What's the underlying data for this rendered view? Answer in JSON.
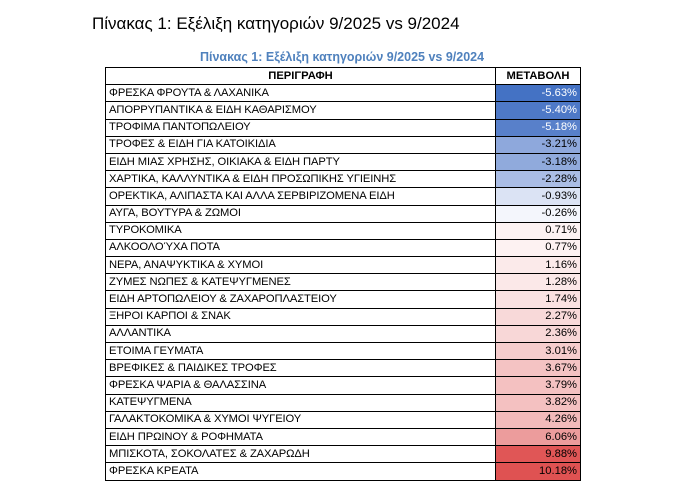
{
  "heading": "Πίνακας 1: Εξέλιξη κατηγοριών 9/2025 vs 9/2024",
  "table": {
    "caption": "Πίνακας 1: Εξέλιξη κατηγοριών 9/2025 vs 9/2024",
    "columns": [
      "ΠΕΡΙΓΡΑΦΗ",
      "ΜΕΤΑΒΟΛΗ"
    ],
    "rows": [
      {
        "description": "ΦΡΕΣΚΑ ΦΡΟΥΤΑ & ΛΑΧΑΝΙΚΑ",
        "change": "-5.63%",
        "color": "#4472c4",
        "dark": true
      },
      {
        "description": "ΑΠΟΡΡΥΠΑΝΤΙΚΑ & ΕΙΔΗ ΚΑΘΑΡΙΣΜΟΥ",
        "change": "-5.40%",
        "color": "#4e79c7",
        "dark": true
      },
      {
        "description": "ΤΡΟΦΙΜΑ ΠΑΝΤΟΠΩΛΕΙΟΥ",
        "change": "-5.18%",
        "color": "#5880ca",
        "dark": true
      },
      {
        "description": "ΤΡΟΦΕΣ & ΕΙΔΗ ΓΙΑ ΚΑΤΟΙΚΙΔΙΑ",
        "change": "-3.21%",
        "color": "#8ea8dc",
        "dark": false
      },
      {
        "description": "ΕΙΔΗ ΜΙΑΣ ΧΡΗΣΗΣ, ΟΙΚΙΑΚΑ & ΕΙΔΗ ΠΑΡΤΥ",
        "change": "-3.18%",
        "color": "#90aadc",
        "dark": false
      },
      {
        "description": "ΧΑΡΤΙΚΑ, ΚΑΛΛΥΝΤΙΚΑ & ΕΙΔΗ ΠΡΟΣΩΠΙΚΗΣ ΥΓΙΕΙΝΗΣ",
        "change": "-2.28%",
        "color": "#aabde5",
        "dark": false
      },
      {
        "description": "ΟΡΕΚΤΙΚΑ, ΑΛΙΠΑΣΤΑ ΚΑΙ ΑΛΛΑ ΣΕΡΒΙΡΙΖΟΜΕΝΑ ΕΙΔΗ",
        "change": "-0.93%",
        "color": "#dbe3f4",
        "dark": false
      },
      {
        "description": "ΑΥΓΑ, ΒΟΥΤΥΡΑ & ΖΩΜΟΙ",
        "change": "-0.26%",
        "color": "#f4f6fc",
        "dark": false
      },
      {
        "description": "ΤΥΡΟΚΟΜΙΚΑ",
        "change": "0.71%",
        "color": "#fdf3f3",
        "dark": false
      },
      {
        "description": "ΑΛΚΟΟΛΟΎΧΑ ΠΟΤΑ",
        "change": "0.77%",
        "color": "#fdf2f2",
        "dark": false
      },
      {
        "description": "ΝΕΡΑ, ΑΝΑΨΥΚΤΙΚΑ & ΧΥΜΟΙ",
        "change": "1.16%",
        "color": "#fbeaea",
        "dark": false
      },
      {
        "description": "ΖΥΜΕΣ ΝΩΠΕΣ & ΚΑΤΕΨΥΓΜΕΝΕΣ",
        "change": "1.28%",
        "color": "#fbe8e8",
        "dark": false
      },
      {
        "description": "ΕΙΔΗ ΑΡΤΟΠΩΛΕΙΟΥ & ΖΑΧΑΡΟΠΛΑΣΤΕΙΟΥ",
        "change": "1.74%",
        "color": "#fae1e1",
        "dark": false
      },
      {
        "description": "ΞΗΡΟΙ ΚΑΡΠΟΙ & ΣΝΑΚ",
        "change": "2.27%",
        "color": "#f8d9d9",
        "dark": false
      },
      {
        "description": "ΑΛΛΑΝΤΙΚΑ",
        "change": "2.36%",
        "color": "#f8d7d7",
        "dark": false
      },
      {
        "description": "ΕΤΟΙΜΑ ΓΕΥΜΑΤΑ",
        "change": "3.01%",
        "color": "#f6cdcd",
        "dark": false
      },
      {
        "description": "ΒΡΕΦΙΚΕΣ & ΠΑΙΔΙΚΕΣ ΤΡΟΦΕΣ",
        "change": "3.67%",
        "color": "#f4c3c3",
        "dark": false
      },
      {
        "description": "ΦΡΕΣΚΑ ΨΑΡΙΑ & ΘΑΛΑΣΣΙΝΑ",
        "change": "3.79%",
        "color": "#f4c1c1",
        "dark": false
      },
      {
        "description": "ΚΑΤΕΨΥΓΜΕΝΑ",
        "change": "3.82%",
        "color": "#f4c1c1",
        "dark": false
      },
      {
        "description": "ΓΑΛΑΚΤΟΚΟΜΙΚΑ & ΧΥΜΟΙ ΨΥΓΕΙΟΥ",
        "change": "4.26%",
        "color": "#f2baba",
        "dark": false
      },
      {
        "description": "ΕΙΔΗ ΠΡΩΙΝΟΥ & ΡΟΦΗΜΑΤΑ",
        "change": "6.06%",
        "color": "#ec9c9c",
        "dark": false
      },
      {
        "description": "ΜΠΙΣΚΟΤΑ, ΣΟΚΟΛΑΤΕΣ & ΖΑΧΑΡΩΔΗ",
        "change": "9.88%",
        "color": "#e05656",
        "dark": false
      },
      {
        "description": "ΦΡΕΣΚΑ ΚΡΕΑΤΑ",
        "change": "10.18%",
        "color": "#df5252",
        "dark": false
      }
    ]
  }
}
